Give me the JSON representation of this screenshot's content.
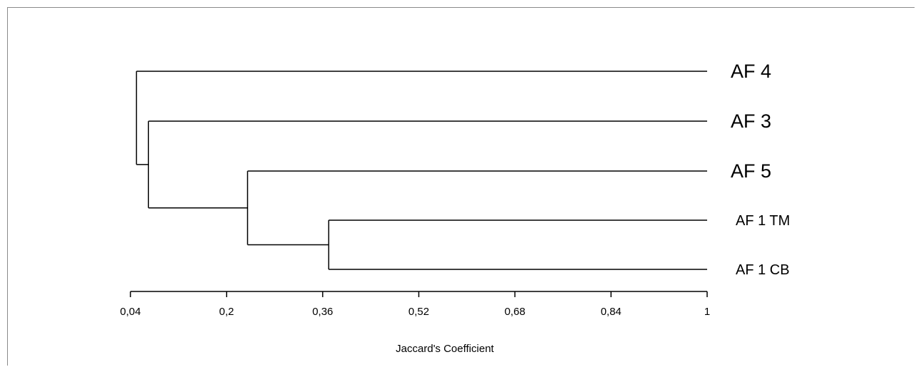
{
  "chart_data": {
    "type": "dendrogram",
    "xlabel": "Jaccard's Coefficient",
    "xlim": [
      0.04,
      1
    ],
    "x_ticks": [
      "0,04",
      "0,2",
      "0,36",
      "0,52",
      "0,68",
      "0,84",
      "1"
    ],
    "x_tick_values": [
      0.04,
      0.2,
      0.36,
      0.52,
      0.68,
      0.84,
      1
    ],
    "leaves": [
      "AF 4",
      "AF 3",
      "AF 5",
      "AF 1 TM",
      "AF 1 CB"
    ],
    "merges": [
      {
        "members": [
          "AF 1 TM",
          "AF 1 CB"
        ],
        "similarity": 0.37
      },
      {
        "members": [
          "AF 5",
          "AF 1 TM",
          "AF 1 CB"
        ],
        "similarity": 0.235
      },
      {
        "members": [
          "AF 3",
          "AF 5",
          "AF 1 TM",
          "AF 1 CB"
        ],
        "similarity": 0.07
      },
      {
        "members": [
          "AF 4",
          "AF 3",
          "AF 5",
          "AF 1 TM",
          "AF 1 CB"
        ],
        "similarity": 0.05
      }
    ],
    "line_color": "#000000"
  }
}
